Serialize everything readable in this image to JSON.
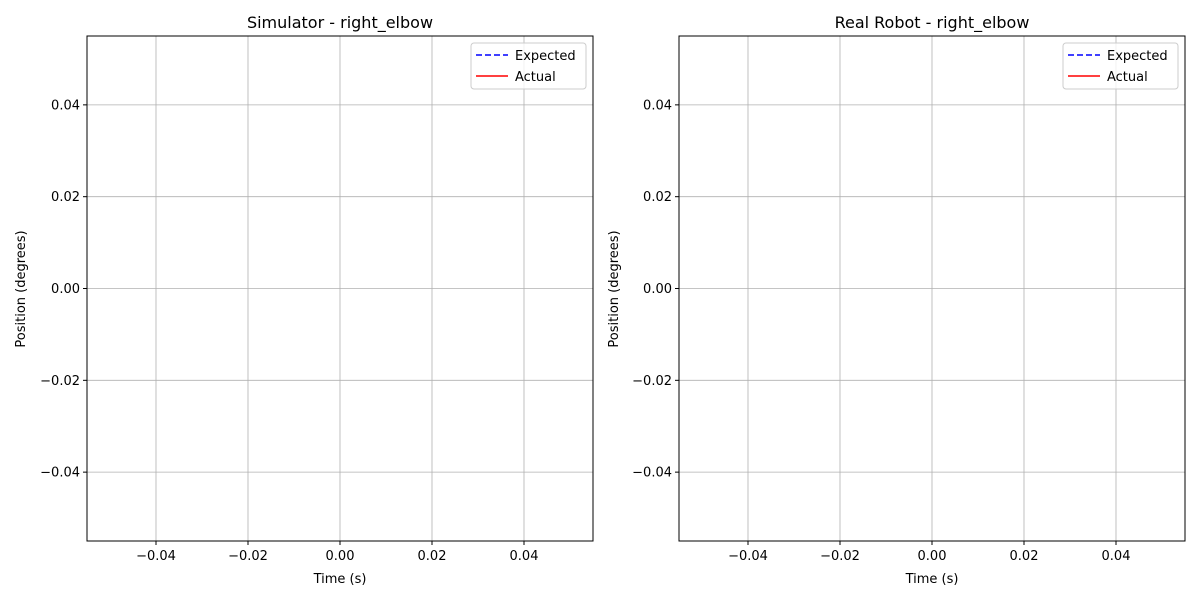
{
  "chart_data": [
    {
      "type": "line",
      "title": "Simulator - right_elbow",
      "xlabel": "Time (s)",
      "ylabel": "Position (degrees)",
      "xlim": [
        -0.055,
        0.055
      ],
      "ylim": [
        -0.055,
        0.055
      ],
      "x_ticks": [
        -0.04,
        -0.02,
        0.0,
        0.02,
        0.04
      ],
      "y_ticks": [
        -0.04,
        -0.02,
        0.0,
        0.02,
        0.04
      ],
      "x_tick_labels": [
        "−0.04",
        "−0.02",
        "0.00",
        "0.02",
        "0.04"
      ],
      "y_tick_labels": [
        "−0.04",
        "−0.02",
        "0.00",
        "0.02",
        "0.04"
      ],
      "grid": true,
      "legend_position": "top-right",
      "series": [
        {
          "name": "Expected",
          "color": "#0000ff",
          "style": "dashed",
          "x": [],
          "y": []
        },
        {
          "name": "Actual",
          "color": "#ff0000",
          "style": "solid",
          "x": [],
          "y": []
        }
      ]
    },
    {
      "type": "line",
      "title": "Real Robot - right_elbow",
      "xlabel": "Time (s)",
      "ylabel": "Position (degrees)",
      "xlim": [
        -0.055,
        0.055
      ],
      "ylim": [
        -0.055,
        0.055
      ],
      "x_ticks": [
        -0.04,
        -0.02,
        0.0,
        0.02,
        0.04
      ],
      "y_ticks": [
        -0.04,
        -0.02,
        0.0,
        0.02,
        0.04
      ],
      "x_tick_labels": [
        "−0.04",
        "−0.02",
        "0.00",
        "0.02",
        "0.04"
      ],
      "y_tick_labels": [
        "−0.04",
        "−0.02",
        "0.00",
        "0.02",
        "0.04"
      ],
      "grid": true,
      "legend_position": "top-right",
      "series": [
        {
          "name": "Expected",
          "color": "#0000ff",
          "style": "dashed",
          "x": [],
          "y": []
        },
        {
          "name": "Actual",
          "color": "#ff0000",
          "style": "solid",
          "x": [],
          "y": []
        }
      ]
    }
  ]
}
